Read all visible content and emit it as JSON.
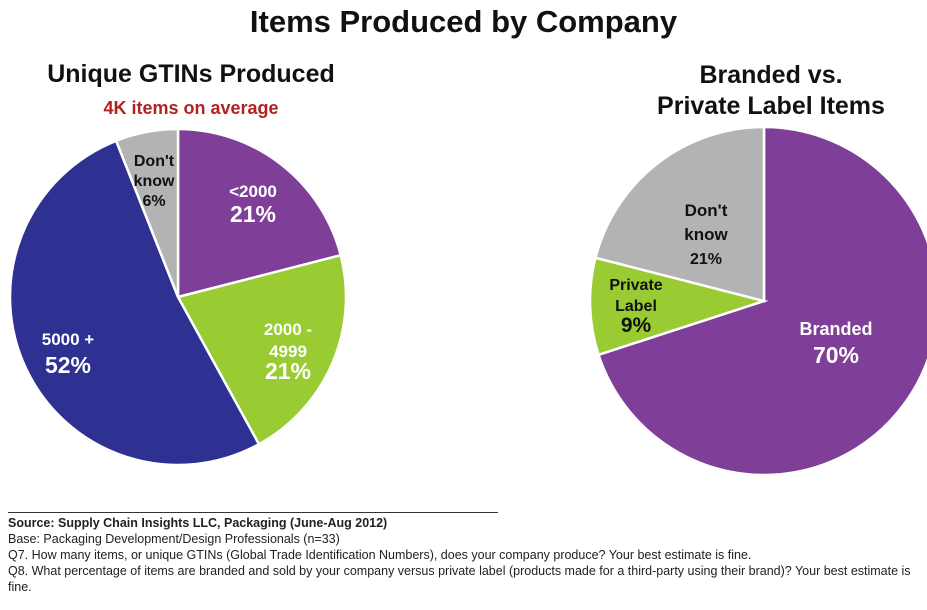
{
  "title": "Items Produced by Company",
  "chart_data": [
    {
      "type": "pie",
      "title": "Unique GTINs Produced",
      "subtitle": "4K items on average",
      "start_angle_deg": 0,
      "slices": [
        {
          "label": "<2000",
          "value": 21,
          "value_label": "21%",
          "color": "#7f3f98"
        },
        {
          "label": "2000 - 4999",
          "value": 21,
          "value_label": "21%",
          "color": "#99cc33"
        },
        {
          "label": "5000 +",
          "value": 52,
          "value_label": "52%",
          "color": "#2e3192"
        },
        {
          "label": "Don't know",
          "value": 6,
          "value_label": "6%",
          "color": "#b3b3b3"
        }
      ]
    },
    {
      "type": "pie",
      "title": "Branded vs. Private Label Items",
      "title_lines": [
        "Branded vs.",
        "Private Label Items"
      ],
      "start_angle_deg": 0,
      "slices": [
        {
          "label": "Branded",
          "value": 70,
          "value_label": "70%",
          "color": "#7f3f98"
        },
        {
          "label": "Private Label",
          "value": 9,
          "value_label": "9%",
          "color": "#99cc33"
        },
        {
          "label": "Don't know",
          "value": 21,
          "value_label": "21%",
          "color": "#b3b3b3"
        }
      ]
    }
  ],
  "footer": {
    "source": "Source:  Supply Chain Insights LLC, Packaging (June-Aug 2012)",
    "base": "Base:  Packaging Development/Design Professionals (n=33)",
    "q7": "Q7. How many items, or unique GTINs (Global Trade Identification Numbers), does your company produce? Your best estimate is fine.",
    "q8": "Q8. What percentage of items are branded and sold by your company versus private label (products made for a third-party using their brand)?  Your best estimate is fine."
  }
}
